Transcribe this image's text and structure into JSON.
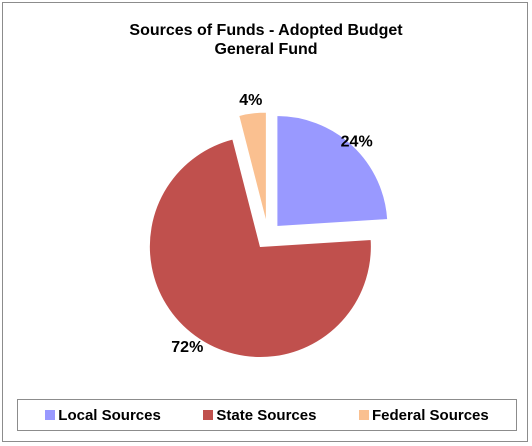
{
  "chart_data": {
    "type": "pie",
    "title": "Sources of Funds - Adopted Budget",
    "subtitle": "General Fund",
    "categories": [
      "Local Sources",
      "State Sources",
      "Federal Sources"
    ],
    "values": [
      24,
      72,
      4
    ],
    "data_labels": [
      "24%",
      "72%",
      "4%"
    ],
    "colors": [
      "#9999ff",
      "#c0504d",
      "#fac090"
    ],
    "exploded": true,
    "legend_position": "bottom"
  }
}
